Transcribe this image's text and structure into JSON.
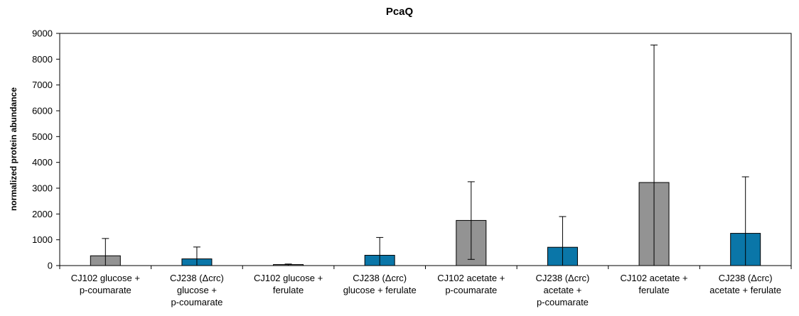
{
  "chart_data": {
    "type": "bar",
    "title": "PcaQ",
    "xlabel": "",
    "ylabel": "normalized protein abundance",
    "ylim": [
      0,
      9000
    ],
    "ytick_step": 1000,
    "grid": false,
    "legend": "none",
    "categories": [
      [
        "CJ102 glucose +",
        "p-coumarate"
      ],
      [
        "CJ238 (Δcrc)",
        "glucose +",
        "p-coumarate"
      ],
      [
        "CJ102 glucose +",
        "ferulate"
      ],
      [
        "CJ238 (Δcrc)",
        "glucose + ferulate"
      ],
      [
        "CJ102 acetate +",
        "p-coumarate"
      ],
      [
        "CJ238 (Δcrc)",
        "acetate +",
        "p-coumarate"
      ],
      [
        "CJ102 acetate +",
        "ferulate"
      ],
      [
        "CJ238 (Δcrc)",
        "acetate + ferulate"
      ]
    ],
    "values": [
      380,
      260,
      40,
      400,
      1750,
      710,
      3220,
      1250
    ],
    "error_low": [
      0,
      0,
      0,
      0,
      240,
      0,
      0,
      0
    ],
    "error_high": [
      1050,
      720,
      60,
      1090,
      3250,
      1900,
      8550,
      3440
    ],
    "colors": [
      "#939393",
      "#0a76a8",
      "#939393",
      "#0a76a8",
      "#939393",
      "#0a76a8",
      "#939393",
      "#0a76a8"
    ]
  }
}
